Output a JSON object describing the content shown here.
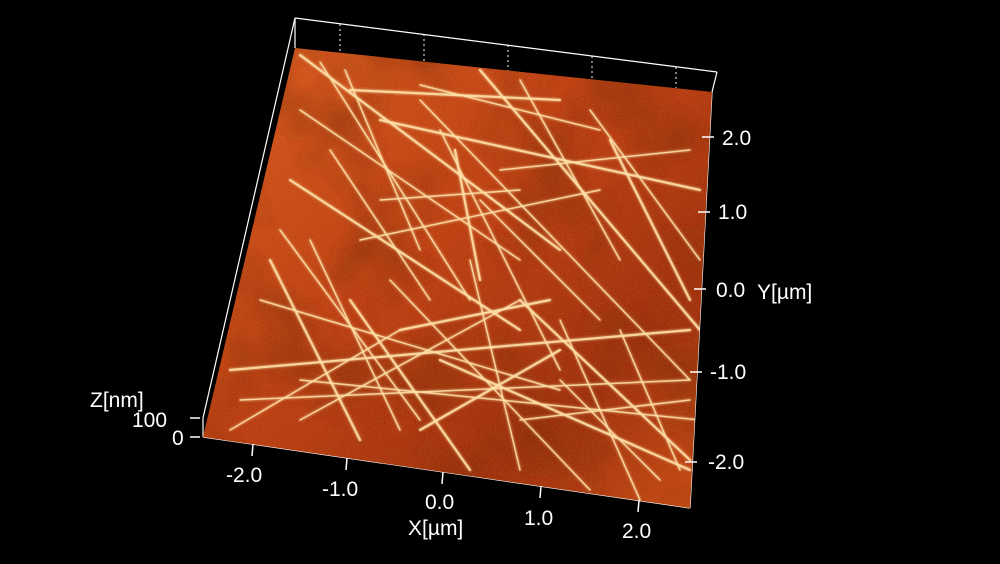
{
  "axes": {
    "x": {
      "title": "X[µm]",
      "ticks": [
        "-2.0",
        "-1.0",
        "0.0",
        "1.0",
        "2.0"
      ]
    },
    "y": {
      "title": "Y[µm]",
      "ticks": [
        "2.0",
        "1.0",
        "0.0",
        "-1.0",
        "-2.0"
      ]
    },
    "z": {
      "title": "Z[nm]",
      "ticks": [
        "100",
        "0"
      ]
    }
  },
  "colors": {
    "background": "#000000",
    "surface_dark": "#3a0a00",
    "surface_mid": "#c8400f",
    "surface_bright": "#ff7a30",
    "fiber": "#ffe2a8",
    "frame": "#ffffff"
  }
}
